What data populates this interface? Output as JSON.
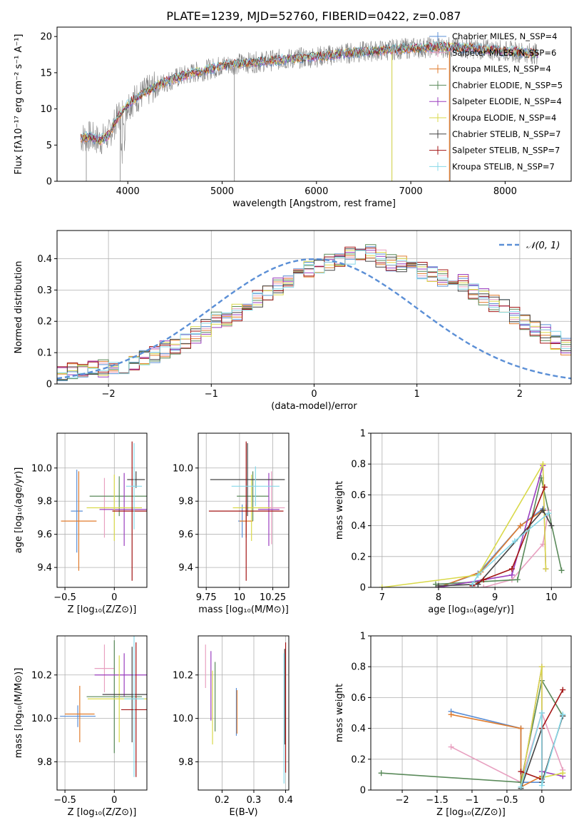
{
  "figure_title": "PLATE=1239, MJD=52760, FIBERID=0422, z=0.087",
  "colors": {
    "Chabrier MILES": "#5b8fd6",
    "Salpeter MILES": "#e8a0c0",
    "Kroupa MILES": "#e07b2c",
    "Chabrier ELODIE": "#5a8a5a",
    "Salpeter ELODIE": "#9b3fbf",
    "Kroupa ELODIE": "#d9d94a",
    "Chabrier STELIB": "#444444",
    "Salpeter STELIB": "#a31515",
    "Kroupa STELIB": "#86d8e8",
    "data": "#808080",
    "normal": "#5b8fd6",
    "grid": "#b0b0b0"
  },
  "chart_data": [
    {
      "id": "spectrum",
      "type": "line",
      "title": "",
      "xlabel": "wavelength [Angstrom, rest frame]",
      "ylabel": "Flux [fλ10⁻¹⁷ erg cm⁻² s⁻¹ A⁻¹]",
      "xlim": [
        3250,
        8700
      ],
      "ylim": [
        0,
        21.3
      ],
      "xticks": [
        4000,
        5000,
        6000,
        7000,
        8000
      ],
      "yticks": [
        0,
        5,
        10,
        15,
        20
      ],
      "grid": false,
      "legend_position": "upper-right",
      "legend": [
        "Chabrier MILES, N_SSP=4",
        "Salpeter MILES, N_SSP=6",
        "Kroupa MILES, N_SSP=4",
        "Chabrier ELODIE, N_SSP=5",
        "Salpeter ELODIE, N_SSP=4",
        "Kroupa ELODIE, N_SSP=4",
        "Chabrier STELIB, N_SSP=7",
        "Salpeter STELIB, N_SSP=7",
        "Kroupa STELIB, N_SSP=7"
      ],
      "continuum": {
        "x": [
          3500,
          3600,
          3700,
          3800,
          3900,
          4000,
          4100,
          4200,
          4300,
          4400,
          4500,
          4700,
          4900,
          5000,
          5200,
          5400,
          5600,
          5800,
          6000,
          6200,
          6400,
          6600,
          6800,
          7000,
          7200,
          7400,
          7600,
          7800,
          8000,
          8200,
          8350
        ],
        "y": [
          6.0,
          6.2,
          5.6,
          6.4,
          9.0,
          10.6,
          11.6,
          12.4,
          13.1,
          13.7,
          14.2,
          15.0,
          15.6,
          16.0,
          16.3,
          16.5,
          16.8,
          17.0,
          17.2,
          17.5,
          17.8,
          18.0,
          18.2,
          18.4,
          18.5,
          18.5,
          18.4,
          18.2,
          18.0,
          17.8,
          17.6
        ]
      }
    },
    {
      "id": "residuals",
      "type": "line",
      "title": "",
      "xlabel": "(data-model)/error",
      "ylabel": "Normed distribution",
      "xlim": [
        -2.5,
        2.5
      ],
      "ylim": [
        0,
        0.49
      ],
      "xticks": [
        -2,
        -1,
        0,
        1,
        2
      ],
      "yticks": [
        0.0,
        0.1,
        0.2,
        0.3,
        0.4
      ],
      "grid": true,
      "legend_position": "upper-right",
      "legend": [
        "𝒩(0, 1)"
      ],
      "bin_width": 0.1,
      "bin_start": -2.5,
      "base_hist": [
        0.03,
        0.04,
        0.04,
        0.05,
        0.05,
        0.06,
        0.06,
        0.07,
        0.08,
        0.09,
        0.11,
        0.12,
        0.14,
        0.16,
        0.18,
        0.2,
        0.21,
        0.23,
        0.25,
        0.27,
        0.29,
        0.31,
        0.33,
        0.35,
        0.37,
        0.38,
        0.39,
        0.4,
        0.41,
        0.42,
        0.42,
        0.4,
        0.39,
        0.38,
        0.37,
        0.36,
        0.35,
        0.34,
        0.33,
        0.32,
        0.3,
        0.28,
        0.26,
        0.24,
        0.22,
        0.2,
        0.18,
        0.16,
        0.14,
        0.12,
        0.11,
        0.1,
        0.08,
        0.07,
        0.06,
        0.05,
        0.04,
        0.03,
        0.03,
        0.02
      ]
    },
    {
      "id": "age_vs_Z",
      "type": "scatter",
      "title": "",
      "xlabel": "Z [log₁₀(Z/Z⊙)]",
      "ylabel": "age  [log₁₀(age/yr)]",
      "xlim": [
        -0.58,
        0.33
      ],
      "ylim": [
        9.28,
        10.21
      ],
      "xticks": [
        -0.5,
        0.0
      ],
      "yticks": [
        9.4,
        9.6,
        9.8,
        10.0
      ],
      "grid": true,
      "points": [
        {
          "model": "Chabrier MILES",
          "x": -0.38,
          "y": 9.74,
          "xerr": 0.06,
          "yerr": 0.25
        },
        {
          "model": "Salpeter MILES",
          "x": -0.1,
          "y": 9.76,
          "xerr": 0.05,
          "yerr": 0.18
        },
        {
          "model": "Kroupa MILES",
          "x": -0.36,
          "y": 9.68,
          "xerr": 0.18,
          "yerr": 0.3
        },
        {
          "model": "Chabrier ELODIE",
          "x": 0.05,
          "y": 9.83,
          "xerr": 0.3,
          "yerr": 0.12
        },
        {
          "model": "Salpeter ELODIE",
          "x": 0.1,
          "y": 9.75,
          "xerr": 0.25,
          "yerr": 0.22
        },
        {
          "model": "Kroupa ELODIE",
          "x": 0.0,
          "y": 9.76,
          "xerr": 0.28,
          "yerr": 0.2
        },
        {
          "model": "Chabrier STELIB",
          "x": 0.22,
          "y": 9.93,
          "xerr": 0.09,
          "yerr": 0.05
        },
        {
          "model": "Salpeter STELIB",
          "x": 0.18,
          "y": 9.74,
          "xerr": 0.2,
          "yerr": 0.42
        },
        {
          "model": "Kroupa STELIB",
          "x": 0.2,
          "y": 9.89,
          "xerr": 0.08,
          "yerr": 0.26
        }
      ]
    },
    {
      "id": "age_vs_mass",
      "type": "scatter",
      "title": "",
      "xlabel": "mass [log₁₀(M/M⊙)]",
      "ylabel": "",
      "xlim": [
        9.69,
        10.37
      ],
      "ylim": [
        9.28,
        10.21
      ],
      "xticks": [
        9.75,
        10.0,
        10.25
      ],
      "yticks": [
        9.4,
        9.6,
        9.8,
        10.0
      ],
      "grid": true,
      "points": [
        {
          "model": "Chabrier MILES",
          "x": 10.02,
          "y": 9.68,
          "xerr": 0.03,
          "yerr": 0.1
        },
        {
          "model": "Salpeter MILES",
          "x": 10.24,
          "y": 9.76,
          "xerr": 0.1,
          "yerr": 0.22
        },
        {
          "model": "Kroupa MILES",
          "x": 10.05,
          "y": 9.68,
          "xerr": 0.05,
          "yerr": 0.1
        },
        {
          "model": "Chabrier ELODIE",
          "x": 10.1,
          "y": 9.83,
          "xerr": 0.12,
          "yerr": 0.15
        },
        {
          "model": "Salpeter ELODIE",
          "x": 10.22,
          "y": 9.75,
          "xerr": 0.08,
          "yerr": 0.22
        },
        {
          "model": "Kroupa ELODIE",
          "x": 10.09,
          "y": 9.76,
          "xerr": 0.14,
          "yerr": 0.2
        },
        {
          "model": "Chabrier STELIB",
          "x": 10.06,
          "y": 9.93,
          "xerr": 0.28,
          "yerr": 0.22
        },
        {
          "model": "Salpeter STELIB",
          "x": 10.05,
          "y": 9.74,
          "xerr": 0.28,
          "yerr": 0.42
        },
        {
          "model": "Kroupa STELIB",
          "x": 10.12,
          "y": 9.89,
          "xerr": 0.18,
          "yerr": 0.12
        }
      ]
    },
    {
      "id": "mass_weight_vs_age",
      "type": "line",
      "title": "",
      "xlabel": "age  [log₁₀(age/yr)]",
      "ylabel": "mass weight",
      "xlim": [
        6.8,
        10.35
      ],
      "ylim": [
        0,
        1.0
      ],
      "xticks": [
        7,
        8,
        9,
        10
      ],
      "yticks": [
        0.0,
        0.2,
        0.4,
        0.6,
        0.8,
        1.0
      ],
      "grid": true,
      "series": [
        {
          "model": "Chabrier MILES",
          "x": [
            8.0,
            8.7,
            9.45,
            9.85
          ],
          "y": [
            0.0,
            0.09,
            0.4,
            0.51
          ]
        },
        {
          "model": "Salpeter MILES",
          "x": [
            8.8,
            9.3,
            9.85,
            9.95
          ],
          "y": [
            0.0,
            0.05,
            0.28,
            0.5
          ]
        },
        {
          "model": "Kroupa MILES",
          "x": [
            8.0,
            8.75,
            9.45,
            9.85
          ],
          "y": [
            0.0,
            0.1,
            0.4,
            0.5
          ]
        },
        {
          "model": "Chabrier ELODIE",
          "x": [
            7.95,
            9.4,
            9.82,
            10.18
          ],
          "y": [
            0.02,
            0.05,
            0.71,
            0.11
          ]
        },
        {
          "model": "Salpeter ELODIE",
          "x": [
            8.0,
            9.3,
            9.85,
            9.9
          ],
          "y": [
            0.0,
            0.08,
            0.79,
            0.12
          ]
        },
        {
          "model": "Kroupa ELODIE",
          "x": [
            7.0,
            8.7,
            9.85,
            9.9
          ],
          "y": [
            0.0,
            0.08,
            0.8,
            0.12
          ]
        },
        {
          "model": "Chabrier STELIB",
          "x": [
            8.0,
            8.7,
            9.85,
            10.0
          ],
          "y": [
            0.01,
            0.02,
            0.5,
            0.4
          ]
        },
        {
          "model": "Salpeter STELIB",
          "x": [
            8.6,
            8.8,
            9.3,
            9.88
          ],
          "y": [
            0.01,
            0.05,
            0.12,
            0.65
          ]
        },
        {
          "model": "Kroupa STELIB",
          "x": [
            8.6,
            8.7,
            9.35,
            9.95
          ],
          "y": [
            0.02,
            0.08,
            0.3,
            0.48
          ]
        }
      ]
    },
    {
      "id": "mass_vs_Z",
      "type": "scatter",
      "title": "",
      "xlabel": "Z [log₁₀(Z/Z⊙)]",
      "ylabel": "mass [log₁₀(M/M⊙)]",
      "xlim": [
        -0.58,
        0.33
      ],
      "ylim": [
        9.67,
        10.38
      ],
      "xticks": [
        -0.5,
        0.0
      ],
      "yticks": [
        9.8,
        10.0,
        10.2
      ],
      "grid": true,
      "points": [
        {
          "model": "Chabrier MILES",
          "x": -0.37,
          "y": 10.01,
          "xerr": 0.18,
          "yerr": 0.05
        },
        {
          "model": "Salpeter MILES",
          "x": -0.1,
          "y": 10.23,
          "xerr": 0.1,
          "yerr": 0.11
        },
        {
          "model": "Kroupa MILES",
          "x": -0.35,
          "y": 10.02,
          "xerr": 0.15,
          "yerr": 0.13
        },
        {
          "model": "Chabrier ELODIE",
          "x": 0.0,
          "y": 10.1,
          "xerr": 0.28,
          "yerr": 0.26
        },
        {
          "model": "Salpeter ELODIE",
          "x": 0.1,
          "y": 10.2,
          "xerr": 0.3,
          "yerr": 0.1
        },
        {
          "model": "Kroupa ELODIE",
          "x": 0.05,
          "y": 10.09,
          "xerr": 0.32,
          "yerr": 0.2
        },
        {
          "model": "Chabrier STELIB",
          "x": 0.18,
          "y": 10.11,
          "xerr": 0.3,
          "yerr": 0.22
        },
        {
          "model": "Salpeter STELIB",
          "x": 0.22,
          "y": 10.04,
          "xerr": 0.15,
          "yerr": 0.31
        },
        {
          "model": "Kroupa STELIB",
          "x": 0.2,
          "y": 10.09,
          "xerr": 0.1,
          "yerr": 0.36
        }
      ]
    },
    {
      "id": "mass_vs_ebv",
      "type": "scatter",
      "title": "",
      "xlabel": "E(B-V)",
      "ylabel": "",
      "xlim": [
        0.125,
        0.41
      ],
      "ylim": [
        9.67,
        10.38
      ],
      "xticks": [
        0.2,
        0.3,
        0.4
      ],
      "yticks": [
        9.8,
        10.0,
        10.2
      ],
      "grid": true,
      "points": [
        {
          "model": "Chabrier MILES",
          "x": 0.245,
          "y": 10.03,
          "xerr": 0.0,
          "yerr": 0.11
        },
        {
          "model": "Salpeter MILES",
          "x": 0.148,
          "y": 10.24,
          "xerr": 0.0,
          "yerr": 0.1
        },
        {
          "model": "Kroupa MILES",
          "x": 0.247,
          "y": 10.03,
          "xerr": 0.0,
          "yerr": 0.1
        },
        {
          "model": "Chabrier ELODIE",
          "x": 0.178,
          "y": 10.1,
          "xerr": 0.0,
          "yerr": 0.16
        },
        {
          "model": "Salpeter ELODIE",
          "x": 0.165,
          "y": 10.15,
          "xerr": 0.0,
          "yerr": 0.16
        },
        {
          "model": "Kroupa ELODIE",
          "x": 0.17,
          "y": 10.05,
          "xerr": 0.0,
          "yerr": 0.17
        },
        {
          "model": "Chabrier STELIB",
          "x": 0.397,
          "y": 10.1,
          "xerr": 0.0,
          "yerr": 0.22
        },
        {
          "model": "Salpeter STELIB",
          "x": 0.4,
          "y": 10.05,
          "xerr": 0.0,
          "yerr": 0.3
        },
        {
          "model": "Kroupa STELIB",
          "x": 0.395,
          "y": 10.0,
          "xerr": 0.0,
          "yerr": 0.3
        }
      ]
    },
    {
      "id": "mass_weight_vs_Z",
      "type": "line",
      "title": "",
      "xlabel": "Z [log₁₀(Z/Z⊙)]",
      "ylabel": "mass weight",
      "xlim": [
        -2.45,
        0.42
      ],
      "ylim": [
        0,
        1.0
      ],
      "xticks": [
        -2.0,
        -1.5,
        -1.0,
        -0.5,
        0.0
      ],
      "yticks": [
        0.0,
        0.2,
        0.4,
        0.6,
        0.8,
        1.0
      ],
      "grid": true,
      "series": [
        {
          "model": "Chabrier MILES",
          "x": [
            -1.3,
            -0.3,
            -0.3,
            0.0
          ],
          "y": [
            0.51,
            0.4,
            0.05,
            0.05
          ]
        },
        {
          "model": "Salpeter MILES",
          "x": [
            -1.3,
            -0.3,
            0.0,
            0.3
          ],
          "y": [
            0.28,
            0.05,
            0.5,
            0.13
          ]
        },
        {
          "model": "Kroupa MILES",
          "x": [
            -1.3,
            -0.3,
            -0.3,
            0.0
          ],
          "y": [
            0.49,
            0.4,
            0.02,
            0.09
          ]
        },
        {
          "model": "Chabrier ELODIE",
          "x": [
            -2.3,
            -0.3,
            0.0,
            0.3
          ],
          "y": [
            0.11,
            0.05,
            0.71,
            0.48
          ]
        },
        {
          "model": "Salpeter ELODIE",
          "x": [
            -0.3,
            0.0,
            0.0,
            0.3
          ],
          "y": [
            0.02,
            0.8,
            0.12,
            0.09
          ]
        },
        {
          "model": "Kroupa ELODIE",
          "x": [
            -0.3,
            0.0,
            0.0,
            0.3
          ],
          "y": [
            0.02,
            0.8,
            0.08,
            0.11
          ]
        },
        {
          "model": "Chabrier STELIB",
          "x": [
            -0.3,
            0.0,
            0.0,
            0.3
          ],
          "y": [
            0.01,
            0.4,
            0.05,
            0.48
          ]
        },
        {
          "model": "Salpeter STELIB",
          "x": [
            -0.3,
            0.0,
            0.0,
            0.3
          ],
          "y": [
            0.12,
            0.07,
            0.4,
            0.65
          ]
        },
        {
          "model": "Kroupa STELIB",
          "x": [
            -0.3,
            0.0,
            0.0,
            0.3
          ],
          "y": [
            0.02,
            0.5,
            0.03,
            0.49
          ]
        }
      ]
    }
  ]
}
